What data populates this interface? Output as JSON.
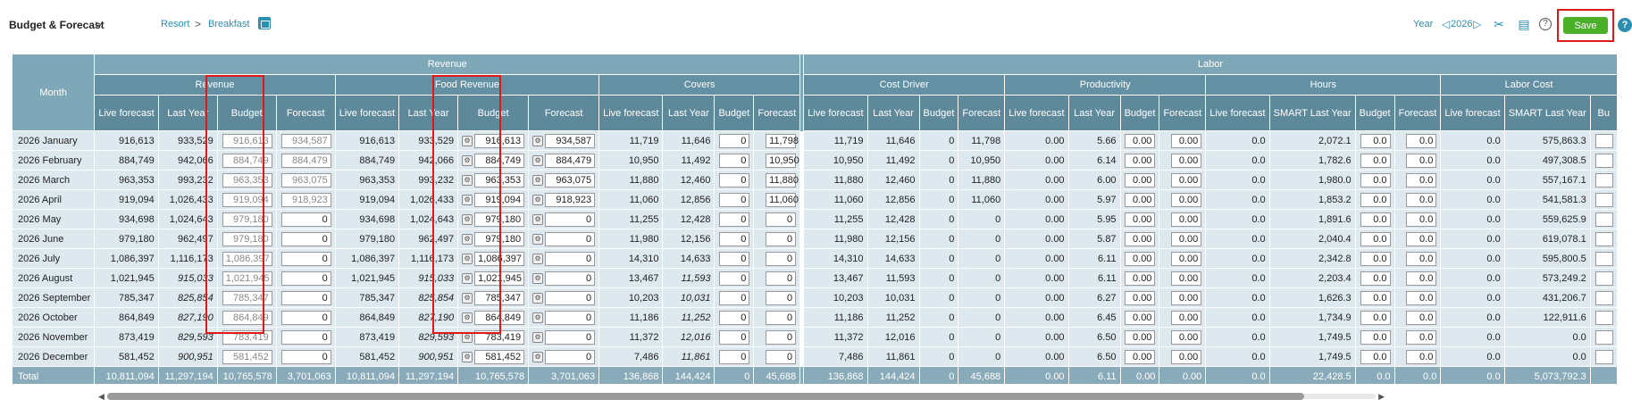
{
  "header": {
    "title": "Budget & Forecast",
    "title_chevron": ">",
    "breadcrumb": [
      "Resort",
      "Breakfast"
    ],
    "breadcrumb_sep": ">",
    "year_label": "Year",
    "year_prev": "◁",
    "year_value": "2026",
    "year_next": "▷",
    "save_label": "Save",
    "help_label": "?"
  },
  "groups": [
    {
      "label": "Revenue",
      "span": 16
    },
    {
      "label": "Labor",
      "span": 18
    }
  ],
  "subgroups": [
    {
      "label": "Revenue",
      "span": 4
    },
    {
      "label": "Food Revenue",
      "span": 4
    },
    {
      "label": "Covers",
      "span": 4
    },
    {
      "label": "Cost Driver",
      "span": 4
    },
    {
      "label": "Productivity",
      "span": 4
    },
    {
      "label": "Hours",
      "span": 4
    },
    {
      "label": "Labor Cost",
      "span": 3
    }
  ],
  "month_header": "Month",
  "columns": [
    "Live forecast",
    "Last Year",
    "Budget",
    "Forecast",
    "Live forecast",
    "Last Year",
    "Budget",
    "Forecast",
    "Live forecast",
    "Last Year",
    "Budget",
    "Forecast",
    "Live forecast",
    "Last Year",
    "Budget",
    "Forecast",
    "Live forecast",
    "Last Year",
    "Budget",
    "Forecast",
    "Live forecast",
    "SMART Last Year",
    "Budget",
    "Forecast",
    "Live forecast",
    "SMART Last Year",
    "Bu"
  ],
  "rows": [
    {
      "month": "2026 January",
      "rev": [
        "916,613",
        "933,529",
        "916,613",
        "934,587"
      ],
      "food": [
        "916,613",
        "933,529",
        "916,613",
        "934,587"
      ],
      "cov": [
        "11,719",
        "11,646",
        "0",
        "11,798"
      ],
      "cd": [
        "11,719",
        "11,646",
        "0",
        "11,798"
      ],
      "prod": [
        "0.00",
        "5.66",
        "0.00",
        "0.00"
      ],
      "hrs": [
        "0.0",
        "2,072.1",
        "0.0",
        "0.0"
      ],
      "lc": [
        "0.0",
        "575,863.3"
      ]
    },
    {
      "month": "2026 February",
      "rev": [
        "884,749",
        "942,066",
        "884,749",
        "884,479"
      ],
      "food": [
        "884,749",
        "942,066",
        "884,749",
        "884,479"
      ],
      "cov": [
        "10,950",
        "11,492",
        "0",
        "10,950"
      ],
      "cd": [
        "10,950",
        "11,492",
        "0",
        "10,950"
      ],
      "prod": [
        "0.00",
        "6.14",
        "0.00",
        "0.00"
      ],
      "hrs": [
        "0.0",
        "1,782.6",
        "0.0",
        "0.0"
      ],
      "lc": [
        "0.0",
        "497,308.5"
      ]
    },
    {
      "month": "2026 March",
      "rev": [
        "963,353",
        "993,232",
        "963,353",
        "963,075"
      ],
      "food": [
        "963,353",
        "993,232",
        "963,353",
        "963,075"
      ],
      "cov": [
        "11,880",
        "12,460",
        "0",
        "11,880"
      ],
      "cd": [
        "11,880",
        "12,460",
        "0",
        "11,880"
      ],
      "prod": [
        "0.00",
        "6.00",
        "0.00",
        "0.00"
      ],
      "hrs": [
        "0.0",
        "1,980.0",
        "0.0",
        "0.0"
      ],
      "lc": [
        "0.0",
        "557,167.1"
      ]
    },
    {
      "month": "2026 April",
      "rev": [
        "919,094",
        "1,026,433",
        "919,094",
        "918,923"
      ],
      "food": [
        "919,094",
        "1,026,433",
        "919,094",
        "918,923"
      ],
      "cov": [
        "11,060",
        "12,856",
        "0",
        "11,060"
      ],
      "cd": [
        "11,060",
        "12,856",
        "0",
        "11,060"
      ],
      "prod": [
        "0.00",
        "5.97",
        "0.00",
        "0.00"
      ],
      "hrs": [
        "0.0",
        "1,853.2",
        "0.0",
        "0.0"
      ],
      "lc": [
        "0.0",
        "541,581.3"
      ]
    },
    {
      "month": "2026 May",
      "rev": [
        "934,698",
        "1,024,643",
        "979,180",
        "0"
      ],
      "food": [
        "934,698",
        "1,024,643",
        "979,180",
        "0"
      ],
      "cov": [
        "11,255",
        "12,428",
        "0",
        "0"
      ],
      "cd": [
        "11,255",
        "12,428",
        "0",
        "0"
      ],
      "prod": [
        "0.00",
        "5.95",
        "0.00",
        "0.00"
      ],
      "hrs": [
        "0.0",
        "1,891.6",
        "0.0",
        "0.0"
      ],
      "lc": [
        "0.0",
        "559,625.9"
      ]
    },
    {
      "month": "2026 June",
      "rev": [
        "979,180",
        "962,497",
        "979,180",
        "0"
      ],
      "food": [
        "979,180",
        "962,497",
        "979,180",
        "0"
      ],
      "cov": [
        "11,980",
        "12,156",
        "0",
        "0"
      ],
      "cd": [
        "11,980",
        "12,156",
        "0",
        "0"
      ],
      "prod": [
        "0.00",
        "5.87",
        "0.00",
        "0.00"
      ],
      "hrs": [
        "0.0",
        "2,040.4",
        "0.0",
        "0.0"
      ],
      "lc": [
        "0.0",
        "619,078.1"
      ]
    },
    {
      "month": "2026 July",
      "rev": [
        "1,086,397",
        "1,116,173",
        "1,086,397",
        "0"
      ],
      "food": [
        "1,086,397",
        "1,116,173",
        "1,086,397",
        "0"
      ],
      "cov": [
        "14,310",
        "14,633",
        "0",
        "0"
      ],
      "cd": [
        "14,310",
        "14,633",
        "0",
        "0"
      ],
      "prod": [
        "0.00",
        "6.11",
        "0.00",
        "0.00"
      ],
      "hrs": [
        "0.0",
        "2,342.8",
        "0.0",
        "0.0"
      ],
      "lc": [
        "0.0",
        "595,800.5"
      ]
    },
    {
      "month": "2026 August",
      "rev": [
        "1,021,945",
        "915,033",
        "1,021,945",
        "0"
      ],
      "food": [
        "1,021,945",
        "915,033",
        "1,021,945",
        "0"
      ],
      "cov": [
        "13,467",
        "11,593",
        "0",
        "0"
      ],
      "cd": [
        "13,467",
        "11,593",
        "0",
        "0"
      ],
      "prod": [
        "0.00",
        "6.11",
        "0.00",
        "0.00"
      ],
      "hrs": [
        "0.0",
        "2,203.4",
        "0.0",
        "0.0"
      ],
      "lc": [
        "0.0",
        "573,249.2"
      ],
      "ly_italic": true
    },
    {
      "month": "2026 September",
      "rev": [
        "785,347",
        "825,854",
        "785,347",
        "0"
      ],
      "food": [
        "785,347",
        "825,854",
        "785,347",
        "0"
      ],
      "cov": [
        "10,203",
        "10,031",
        "0",
        "0"
      ],
      "cd": [
        "10,203",
        "10,031",
        "0",
        "0"
      ],
      "prod": [
        "0.00",
        "6.27",
        "0.00",
        "0.00"
      ],
      "hrs": [
        "0.0",
        "1,626.3",
        "0.0",
        "0.0"
      ],
      "lc": [
        "0.0",
        "431,206.7"
      ],
      "ly_italic": true
    },
    {
      "month": "2026 October",
      "rev": [
        "864,849",
        "827,190",
        "864,849",
        "0"
      ],
      "food": [
        "864,849",
        "827,190",
        "864,849",
        "0"
      ],
      "cov": [
        "11,186",
        "11,252",
        "0",
        "0"
      ],
      "cd": [
        "11,186",
        "11,252",
        "0",
        "0"
      ],
      "prod": [
        "0.00",
        "6.45",
        "0.00",
        "0.00"
      ],
      "hrs": [
        "0.0",
        "1,734.9",
        "0.0",
        "0.0"
      ],
      "lc": [
        "0.0",
        "122,911.6"
      ],
      "ly_italic": true
    },
    {
      "month": "2026 November",
      "rev": [
        "873,419",
        "829,593",
        "783,419",
        "0"
      ],
      "food": [
        "873,419",
        "829,593",
        "783,419",
        "0"
      ],
      "cov": [
        "11,372",
        "12,016",
        "0",
        "0"
      ],
      "cd": [
        "11,372",
        "12,016",
        "0",
        "0"
      ],
      "prod": [
        "0.00",
        "6.50",
        "0.00",
        "0.00"
      ],
      "hrs": [
        "0.0",
        "1,749.5",
        "0.0",
        "0.0"
      ],
      "lc": [
        "0.0",
        "0.0"
      ],
      "ly_italic": true
    },
    {
      "month": "2026 December",
      "rev": [
        "581,452",
        "900,951",
        "581,452",
        "0"
      ],
      "food": [
        "581,452",
        "900,951",
        "581,452",
        "0"
      ],
      "cov": [
        "7,486",
        "11,861",
        "0",
        "0"
      ],
      "cd": [
        "7,486",
        "11,861",
        "0",
        "0"
      ],
      "prod": [
        "0.00",
        "6.50",
        "0.00",
        "0.00"
      ],
      "hrs": [
        "0.0",
        "1,749.5",
        "0.0",
        "0.0"
      ],
      "lc": [
        "0.0",
        "0.0"
      ],
      "ly_italic": true
    }
  ],
  "total": {
    "label": "Total",
    "values": [
      "10,811,094",
      "11,297,194",
      "10,765,578",
      "3,701,063",
      "10,811,094",
      "11,297,194",
      "10,765,578",
      "3,701,063",
      "136,868",
      "144,424",
      "0",
      "45,688",
      "136,868",
      "144,424",
      "0",
      "45,688",
      "0.00",
      "6.11",
      "0.00",
      "0.00",
      "0.0",
      "22,428.5",
      "0.0",
      "0.0",
      "0.0",
      "5,073,792.3",
      ""
    ]
  }
}
